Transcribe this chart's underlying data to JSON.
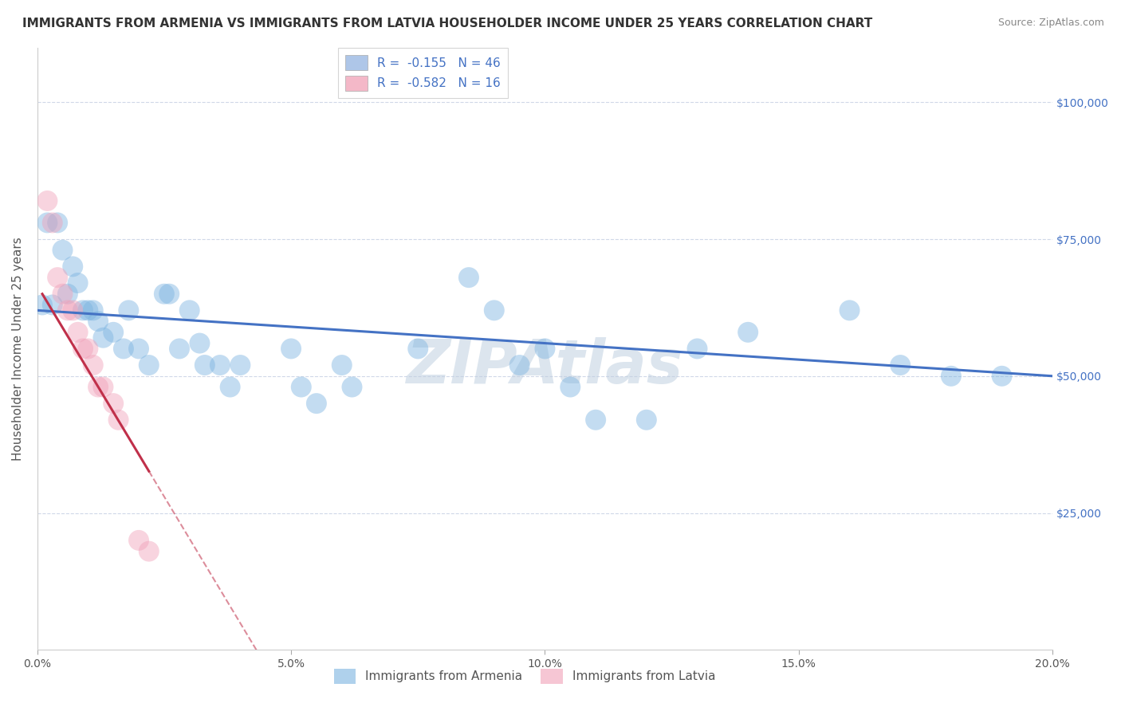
{
  "title": "IMMIGRANTS FROM ARMENIA VS IMMIGRANTS FROM LATVIA HOUSEHOLDER INCOME UNDER 25 YEARS CORRELATION CHART",
  "source": "Source: ZipAtlas.com",
  "ylabel": "Householder Income Under 25 years",
  "xmin": 0.0,
  "xmax": 0.2,
  "ymin": 0,
  "ymax": 110000,
  "yticks": [
    0,
    25000,
    50000,
    75000,
    100000
  ],
  "ytick_labels": [
    "",
    "$25,000",
    "$50,000",
    "$75,000",
    "$100,000"
  ],
  "xticks": [
    0.0,
    0.05,
    0.1,
    0.15,
    0.2
  ],
  "xtick_labels": [
    "0.0%",
    "5.0%",
    "10.0%",
    "15.0%",
    "20.0%"
  ],
  "legend_entries": [
    {
      "label": "R =  -0.155   N = 46",
      "color": "#aec6e8"
    },
    {
      "label": "R =  -0.582   N = 16",
      "color": "#f4b8c8"
    }
  ],
  "legend_labels_bottom": [
    "Immigrants from Armenia",
    "Immigrants from Latvia"
  ],
  "watermark": "ZIPAtlas",
  "watermark_color": "#c0d0e0",
  "armenia_color": "#7bb3e0",
  "latvia_color": "#f0a0b8",
  "trendline_armenia_color": "#4472c4",
  "trendline_latvia_color": "#c0304a",
  "grid_color": "#d0d8e8",
  "background_color": "#ffffff",
  "armenia_scatter": [
    [
      0.001,
      63000
    ],
    [
      0.002,
      78000
    ],
    [
      0.003,
      63000
    ],
    [
      0.004,
      78000
    ],
    [
      0.005,
      73000
    ],
    [
      0.006,
      65000
    ],
    [
      0.007,
      70000
    ],
    [
      0.008,
      67000
    ],
    [
      0.009,
      62000
    ],
    [
      0.01,
      62000
    ],
    [
      0.011,
      62000
    ],
    [
      0.012,
      60000
    ],
    [
      0.013,
      57000
    ],
    [
      0.015,
      58000
    ],
    [
      0.017,
      55000
    ],
    [
      0.018,
      62000
    ],
    [
      0.02,
      55000
    ],
    [
      0.022,
      52000
    ],
    [
      0.025,
      65000
    ],
    [
      0.026,
      65000
    ],
    [
      0.028,
      55000
    ],
    [
      0.03,
      62000
    ],
    [
      0.032,
      56000
    ],
    [
      0.033,
      52000
    ],
    [
      0.036,
      52000
    ],
    [
      0.038,
      48000
    ],
    [
      0.04,
      52000
    ],
    [
      0.05,
      55000
    ],
    [
      0.052,
      48000
    ],
    [
      0.055,
      45000
    ],
    [
      0.06,
      52000
    ],
    [
      0.062,
      48000
    ],
    [
      0.075,
      55000
    ],
    [
      0.085,
      68000
    ],
    [
      0.09,
      62000
    ],
    [
      0.095,
      52000
    ],
    [
      0.1,
      55000
    ],
    [
      0.105,
      48000
    ],
    [
      0.11,
      42000
    ],
    [
      0.12,
      42000
    ],
    [
      0.13,
      55000
    ],
    [
      0.14,
      58000
    ],
    [
      0.16,
      62000
    ],
    [
      0.17,
      52000
    ],
    [
      0.18,
      50000
    ],
    [
      0.19,
      50000
    ]
  ],
  "latvia_scatter": [
    [
      0.002,
      82000
    ],
    [
      0.003,
      78000
    ],
    [
      0.004,
      68000
    ],
    [
      0.005,
      65000
    ],
    [
      0.006,
      62000
    ],
    [
      0.007,
      62000
    ],
    [
      0.008,
      58000
    ],
    [
      0.009,
      55000
    ],
    [
      0.01,
      55000
    ],
    [
      0.011,
      52000
    ],
    [
      0.012,
      48000
    ],
    [
      0.013,
      48000
    ],
    [
      0.015,
      45000
    ],
    [
      0.016,
      42000
    ],
    [
      0.02,
      20000
    ],
    [
      0.022,
      18000
    ]
  ],
  "trendline_armenia_x0": 0.0,
  "trendline_armenia_y0": 62000,
  "trendline_armenia_x1": 0.2,
  "trendline_armenia_y1": 50000,
  "trendline_latvia_x0": 0.001,
  "trendline_latvia_y0": 65000,
  "trendline_latvia_x1": 0.025,
  "trendline_latvia_y1": 28000,
  "title_fontsize": 11,
  "axis_label_fontsize": 11,
  "tick_fontsize": 10,
  "legend_fontsize": 11,
  "source_fontsize": 9
}
